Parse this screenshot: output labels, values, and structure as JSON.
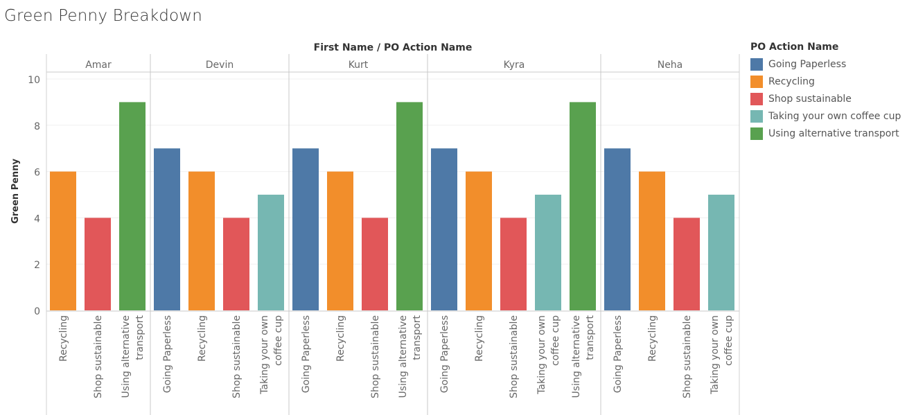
{
  "title": "Green Penny Breakdown",
  "chart_data": {
    "type": "bar",
    "title": "Green Penny Breakdown",
    "column_header": "First Name  /  PO Action Name",
    "ylabel": "Green Penny",
    "ylim": [
      0,
      10
    ],
    "yticks": [
      0,
      2,
      4,
      6,
      8,
      10
    ],
    "grid": true,
    "legend_title": "PO Action Name",
    "legend_position": "right",
    "legend": [
      {
        "name": "Going Paperless",
        "color": "#4e79a7"
      },
      {
        "name": "Recycling",
        "color": "#f28e2b"
      },
      {
        "name": "Shop sustainable",
        "color": "#e15759"
      },
      {
        "name": "Taking your own coffee cup",
        "color": "#76b7b2"
      },
      {
        "name": "Using alternative transport",
        "color": "#59a14f"
      }
    ],
    "groups": [
      {
        "name": "Amar",
        "bars": [
          {
            "label": "Recycling",
            "lines": [
              "Recycling"
            ],
            "value": 6,
            "color": "#f28e2b"
          },
          {
            "label": "Shop sustainable",
            "lines": [
              "Shop sustainable"
            ],
            "value": 4,
            "color": "#e15759"
          },
          {
            "label": "Using alternative transport",
            "lines": [
              "Using alternative",
              "transport"
            ],
            "value": 9,
            "color": "#59a14f"
          }
        ]
      },
      {
        "name": "Devin",
        "bars": [
          {
            "label": "Going Paperless",
            "lines": [
              "Going Paperless"
            ],
            "value": 7,
            "color": "#4e79a7"
          },
          {
            "label": "Recycling",
            "lines": [
              "Recycling"
            ],
            "value": 6,
            "color": "#f28e2b"
          },
          {
            "label": "Shop sustainable",
            "lines": [
              "Shop sustainable"
            ],
            "value": 4,
            "color": "#e15759"
          },
          {
            "label": "Taking your own coffee cup",
            "lines": [
              "Taking your own",
              "coffee cup"
            ],
            "value": 5,
            "color": "#76b7b2"
          }
        ]
      },
      {
        "name": "Kurt",
        "bars": [
          {
            "label": "Going Paperless",
            "lines": [
              "Going Paperless"
            ],
            "value": 7,
            "color": "#4e79a7"
          },
          {
            "label": "Recycling",
            "lines": [
              "Recycling"
            ],
            "value": 6,
            "color": "#f28e2b"
          },
          {
            "label": "Shop sustainable",
            "lines": [
              "Shop sustainable"
            ],
            "value": 4,
            "color": "#e15759"
          },
          {
            "label": "Using alternative transport",
            "lines": [
              "Using alternative",
              "transport"
            ],
            "value": 9,
            "color": "#59a14f"
          }
        ]
      },
      {
        "name": "Kyra",
        "bars": [
          {
            "label": "Going Paperless",
            "lines": [
              "Going Paperless"
            ],
            "value": 7,
            "color": "#4e79a7"
          },
          {
            "label": "Recycling",
            "lines": [
              "Recycling"
            ],
            "value": 6,
            "color": "#f28e2b"
          },
          {
            "label": "Shop sustainable",
            "lines": [
              "Shop sustainable"
            ],
            "value": 4,
            "color": "#e15759"
          },
          {
            "label": "Taking your own coffee cup",
            "lines": [
              "Taking your own",
              "coffee cup"
            ],
            "value": 5,
            "color": "#76b7b2"
          },
          {
            "label": "Using alternative transport",
            "lines": [
              "Using alternative",
              "transport"
            ],
            "value": 9,
            "color": "#59a14f"
          }
        ]
      },
      {
        "name": "Neha",
        "bars": [
          {
            "label": "Going Paperless",
            "lines": [
              "Going Paperless"
            ],
            "value": 7,
            "color": "#4e79a7"
          },
          {
            "label": "Recycling",
            "lines": [
              "Recycling"
            ],
            "value": 6,
            "color": "#f28e2b"
          },
          {
            "label": "Shop sustainable",
            "lines": [
              "Shop sustainable"
            ],
            "value": 4,
            "color": "#e15759"
          },
          {
            "label": "Taking your own coffee cup",
            "lines": [
              "Taking your own",
              "coffee cup"
            ],
            "value": 5,
            "color": "#76b7b2"
          }
        ]
      }
    ]
  }
}
